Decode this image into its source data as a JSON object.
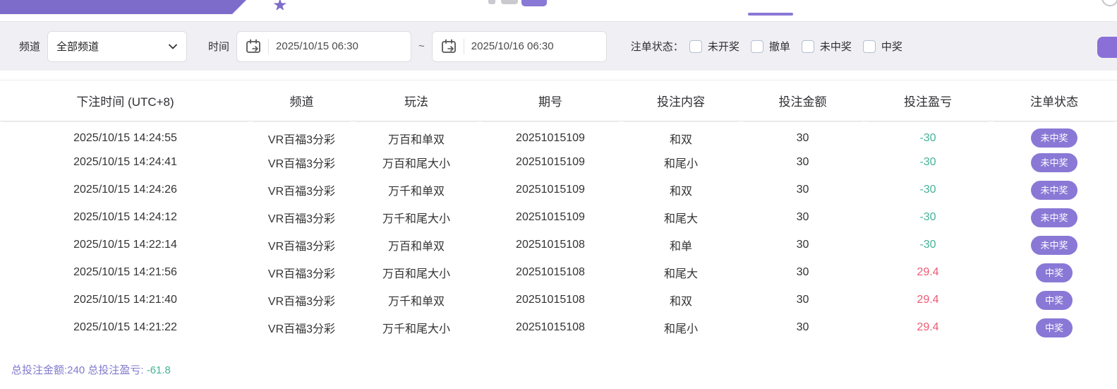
{
  "topbar": {
    "star_icon": "★"
  },
  "filters": {
    "channel_label": "频道",
    "channel_value": "全部频道",
    "time_label": "时间",
    "time_from": "2025/10/15 06:30",
    "time_separator": "~",
    "time_to": "2025/10/16 06:30",
    "status_label": "注单状态：",
    "status_options": [
      {
        "label": "未开奖",
        "checked": false
      },
      {
        "label": "撤单",
        "checked": false
      },
      {
        "label": "未中奖",
        "checked": false
      },
      {
        "label": "中奖",
        "checked": false
      }
    ]
  },
  "table": {
    "columns": [
      "下注时间 (UTC+8)",
      "频道",
      "玩法",
      "期号",
      "投注内容",
      "投注金额",
      "投注盈亏",
      "注单状态"
    ],
    "rows": [
      {
        "time": "2025/10/15 14:24:55",
        "channel": "VR百福3分彩",
        "play": "万百和单双",
        "issue": "20251015109",
        "content": "和双",
        "amount": "30",
        "profit": "-30",
        "status": "未中奖"
      },
      {
        "time": "2025/10/15 14:24:41",
        "channel": "VR百福3分彩",
        "play": "万百和尾大小",
        "issue": "20251015109",
        "content": "和尾小",
        "amount": "30",
        "profit": "-30",
        "status": "未中奖"
      },
      {
        "time": "2025/10/15 14:24:26",
        "channel": "VR百福3分彩",
        "play": "万千和单双",
        "issue": "20251015109",
        "content": "和双",
        "amount": "30",
        "profit": "-30",
        "status": "未中奖"
      },
      {
        "time": "2025/10/15 14:24:12",
        "channel": "VR百福3分彩",
        "play": "万千和尾大小",
        "issue": "20251015109",
        "content": "和尾大",
        "amount": "30",
        "profit": "-30",
        "status": "未中奖"
      },
      {
        "time": "2025/10/15 14:22:14",
        "channel": "VR百福3分彩",
        "play": "万百和单双",
        "issue": "20251015108",
        "content": "和单",
        "amount": "30",
        "profit": "-30",
        "status": "未中奖"
      },
      {
        "time": "2025/10/15 14:21:56",
        "channel": "VR百福3分彩",
        "play": "万百和尾大小",
        "issue": "20251015108",
        "content": "和尾大",
        "amount": "30",
        "profit": "29.4",
        "status": "中奖"
      },
      {
        "time": "2025/10/15 14:21:40",
        "channel": "VR百福3分彩",
        "play": "万千和单双",
        "issue": "20251015108",
        "content": "和双",
        "amount": "30",
        "profit": "29.4",
        "status": "中奖"
      },
      {
        "time": "2025/10/15 14:21:22",
        "channel": "VR百福3分彩",
        "play": "万千和尾大小",
        "issue": "20251015108",
        "content": "和尾小",
        "amount": "30",
        "profit": "29.4",
        "status": "中奖"
      }
    ]
  },
  "summary": {
    "totals_text": "总投注金额:240 总投注盈亏:",
    "profit_value": " -61.8"
  },
  "colors": {
    "accent_purple": "#8a78d6",
    "band_purple": "#7e6cca",
    "profit_negative": "#46b397",
    "profit_positive": "#ed5a74",
    "filter_bg": "#f0f0f4"
  }
}
